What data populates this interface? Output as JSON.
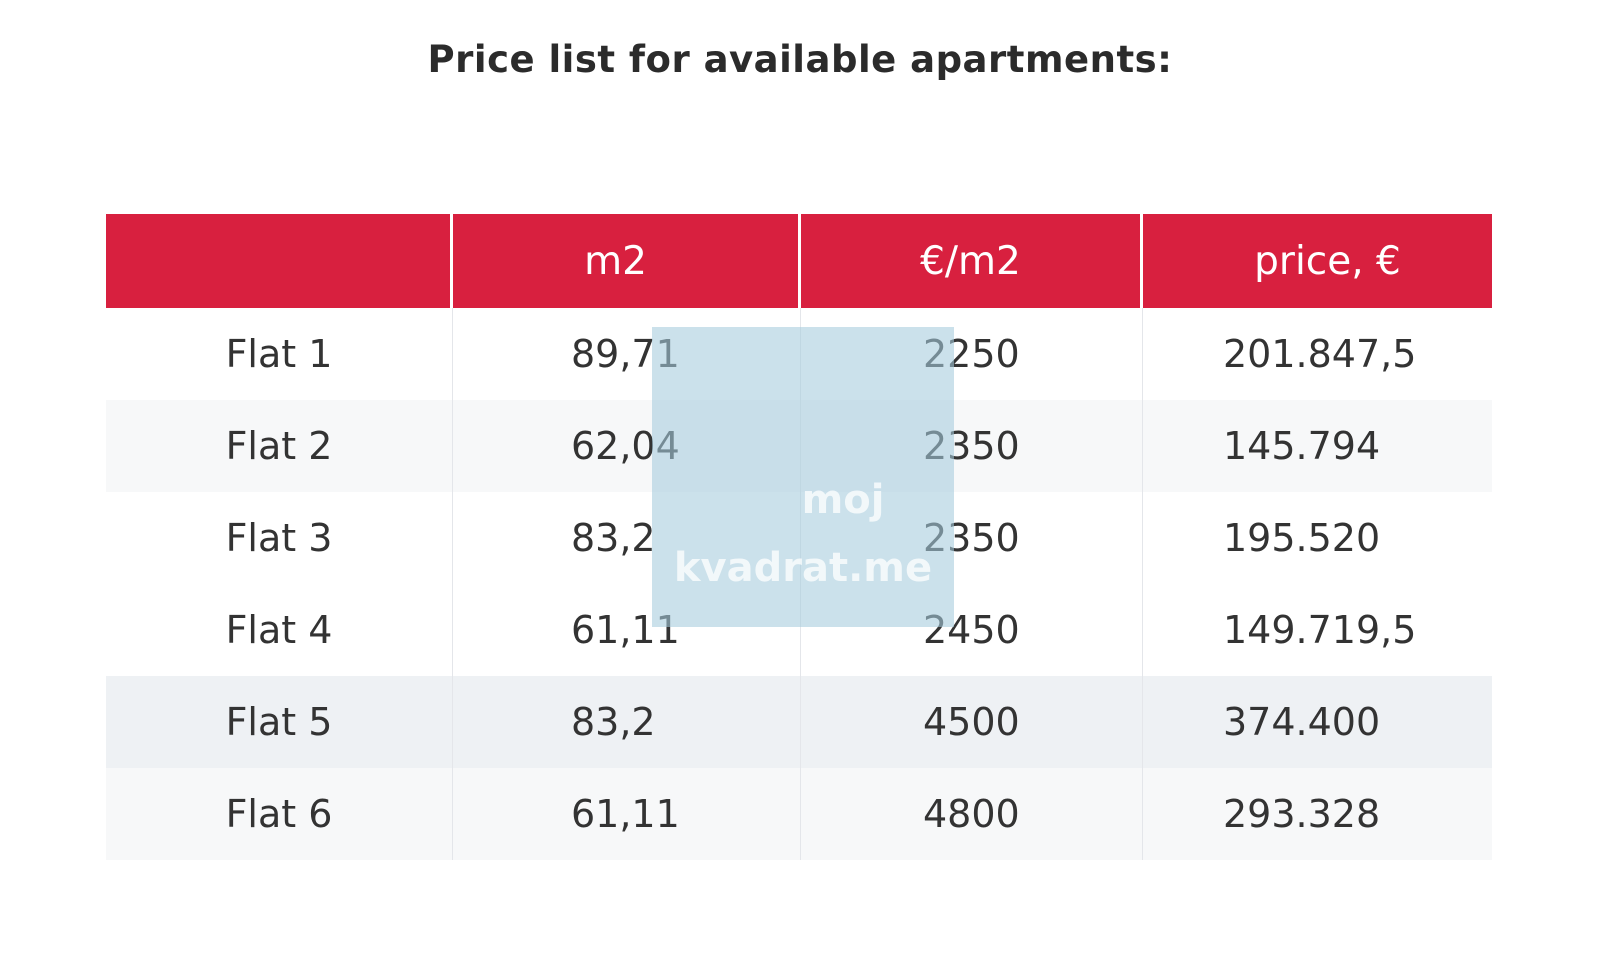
{
  "title": "Price list for available apartments:",
  "table": {
    "headers": [
      "",
      "m2",
      "€/m2",
      "price, €"
    ],
    "rows": [
      {
        "name": "Flat 1",
        "m2": "89,71",
        "price_per_m2": "2250",
        "price": "201.847,5"
      },
      {
        "name": "Flat 2",
        "m2": "62,04",
        "price_per_m2": "2350",
        "price": "145.794"
      },
      {
        "name": "Flat 3",
        "m2": "83,2",
        "price_per_m2": "2350",
        "price": "195.520"
      },
      {
        "name": "Flat 4",
        "m2": "61,11",
        "price_per_m2": "2450",
        "price": "149.719,5"
      },
      {
        "name": "Flat 5",
        "m2": "83,2",
        "price_per_m2": "4500",
        "price": "374.400"
      },
      {
        "name": "Flat 6",
        "m2": "61,11",
        "price_per_m2": "4800",
        "price": "293.328"
      }
    ]
  },
  "watermark": {
    "line1": "moj",
    "line2": "kvadrat.me"
  },
  "colors": {
    "header_background": "#d8203f",
    "header_text": "#ffffff",
    "body_text": "#333333",
    "watermark": "#a6cbdd"
  }
}
